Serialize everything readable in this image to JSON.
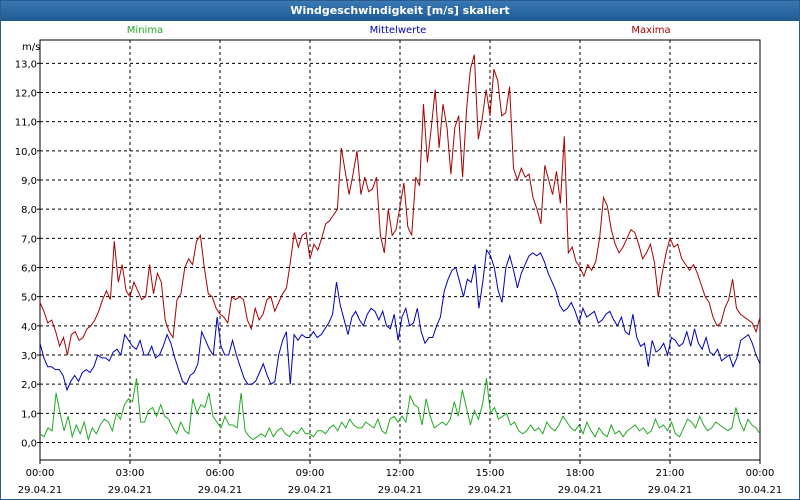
{
  "title": "Windgeschwindigkeit [m/s] skaliert",
  "chart_data": {
    "type": "line",
    "title": "Windgeschwindigkeit [m/s] skaliert",
    "ylabel": "m/s",
    "ylim": [
      -0.6,
      13.8
    ],
    "xlim": [
      0,
      24
    ],
    "y_ticks": [
      "0,0",
      "1,0",
      "2,0",
      "3,0",
      "4,0",
      "5,0",
      "6,0",
      "7,0",
      "8,0",
      "9,0",
      "10,0",
      "11,0",
      "12,0",
      "13,0"
    ],
    "x_ticks": [
      {
        "time": "00:00",
        "date": "29.04.21"
      },
      {
        "time": "03:00",
        "date": "29.04.21"
      },
      {
        "time": "06:00",
        "date": "29.04.21"
      },
      {
        "time": "09:00",
        "date": "29.04.21"
      },
      {
        "time": "12:00",
        "date": "29.04.21"
      },
      {
        "time": "15:00",
        "date": "29.04.21"
      },
      {
        "time": "18:00",
        "date": "29.04.21"
      },
      {
        "time": "21:00",
        "date": "29.04.21"
      },
      {
        "time": "00:00",
        "date": "30.04.21"
      }
    ],
    "grid": true,
    "legend_position": "top",
    "series": [
      {
        "name": "Minima",
        "color": "#22aa22",
        "values": [
          0.3,
          0.2,
          0.5,
          0.4,
          1.7,
          1.0,
          0.4,
          0.9,
          0.2,
          0.6,
          0.3,
          0.7,
          0.1,
          0.5,
          0.3,
          0.6,
          0.8,
          0.7,
          0.4,
          1.0,
          0.8,
          1.3,
          1.5,
          1.4,
          2.2,
          0.7,
          0.7,
          1.1,
          1.2,
          0.9,
          1.3,
          0.9,
          0.8,
          0.5,
          0.3,
          0.7,
          0.4,
          0.3,
          1.5,
          1.0,
          1.3,
          1.2,
          1.7,
          0.9,
          0.7,
          0.5,
          0.9,
          0.6,
          0.6,
          0.5,
          1.7,
          0.4,
          0.2,
          0.1,
          0.2,
          0.3,
          0.2,
          0.5,
          0.2,
          0.4,
          0.5,
          0.3,
          0.2,
          0.4,
          0.3,
          0.5,
          0.3,
          0.3,
          0.2,
          0.4,
          0.4,
          0.3,
          0.5,
          0.6,
          0.4,
          0.7,
          0.5,
          0.8,
          0.6,
          0.5,
          0.5,
          0.7,
          0.6,
          0.5,
          0.8,
          0.4,
          0.3,
          0.8,
          0.9,
          0.7,
          0.9,
          0.7,
          1.6,
          1.3,
          1.2,
          0.6,
          1.5,
          0.9,
          0.5,
          0.6,
          0.7,
          0.6,
          0.8,
          1.4,
          0.9,
          1.8,
          1.2,
          0.6,
          1.1,
          0.8,
          1.3,
          2.2,
          1.0,
          1.2,
          0.8,
          0.9,
          1.0,
          0.6,
          0.7,
          0.4,
          0.3,
          0.4,
          0.6,
          0.4,
          0.5,
          0.3,
          0.7,
          0.5,
          0.4,
          0.6,
          0.9,
          0.7,
          0.5,
          0.4,
          0.6,
          0.3,
          0.7,
          0.4,
          0.2,
          0.5,
          0.3,
          0.2,
          0.6,
          0.3,
          0.4,
          0.2,
          0.4,
          0.5,
          0.6,
          0.4,
          0.5,
          0.3,
          0.4,
          0.8,
          0.5,
          0.6,
          0.4,
          0.7,
          0.3,
          0.2,
          0.5,
          0.8,
          0.7,
          0.5,
          0.9,
          0.6,
          0.4,
          0.5,
          0.7,
          0.6,
          0.5,
          0.4,
          0.5,
          1.2,
          0.7,
          0.4,
          0.8,
          0.6,
          0.5,
          0.3
        ]
      },
      {
        "name": "Mittelwerte",
        "color": "#0000bb",
        "values": [
          3.4,
          2.9,
          2.6,
          2.6,
          2.5,
          2.5,
          2.3,
          1.8,
          2.1,
          2.3,
          2.1,
          2.4,
          2.5,
          2.4,
          2.6,
          3.0,
          2.9,
          2.9,
          2.8,
          3.1,
          3.2,
          3.0,
          3.7,
          3.5,
          3.3,
          3.2,
          3.5,
          3.0,
          3.0,
          3.3,
          2.9,
          3.0,
          3.3,
          3.7,
          3.4,
          2.9,
          2.5,
          2.1,
          2.0,
          2.3,
          2.4,
          2.7,
          3.8,
          3.5,
          3.2,
          3.0,
          4.3,
          3.3,
          3.0,
          3.0,
          3.5,
          3.0,
          2.6,
          2.2,
          2.0,
          2.0,
          2.1,
          2.4,
          2.7,
          2.3,
          2.0,
          2.1,
          3.0,
          3.5,
          3.8,
          2.0,
          3.7,
          3.5,
          3.7,
          3.6,
          3.6,
          3.8,
          3.6,
          3.7,
          3.9,
          4.1,
          4.4,
          5.5,
          4.7,
          4.2,
          3.7,
          4.3,
          4.5,
          4.2,
          4.0,
          4.4,
          4.6,
          4.5,
          4.2,
          4.5,
          4.0,
          3.9,
          4.4,
          3.5,
          4.3,
          4.6,
          4.0,
          4.1,
          4.6,
          3.8,
          3.4,
          3.6,
          3.6,
          4.0,
          4.3,
          5.2,
          5.6,
          5.9,
          6.0,
          5.5,
          5.0,
          5.6,
          5.5,
          6.1,
          4.6,
          5.5,
          6.6,
          6.4,
          6.0,
          5.2,
          4.8,
          6.0,
          6.4,
          5.9,
          5.3,
          5.8,
          6.1,
          6.4,
          6.5,
          6.4,
          6.5,
          6.2,
          5.8,
          5.5,
          5.2,
          4.7,
          4.5,
          4.6,
          4.8,
          4.5,
          4.1,
          4.6,
          4.3,
          4.4,
          4.5,
          4.1,
          4.2,
          4.4,
          4.5,
          4.2,
          4.0,
          4.3,
          3.8,
          3.7,
          4.4,
          3.6,
          3.3,
          3.4,
          2.6,
          3.5,
          3.1,
          3.2,
          3.4,
          3.0,
          3.6,
          3.5,
          3.3,
          3.4,
          3.8,
          3.3,
          3.9,
          3.4,
          3.2,
          3.6,
          3.1,
          3.0,
          3.2,
          2.8,
          2.9,
          3.0,
          2.6,
          2.9,
          3.5,
          3.6,
          3.7,
          3.4,
          3.0,
          2.7
        ]
      },
      {
        "name": "Maxima",
        "color": "#aa0000",
        "values": [
          4.8,
          4.5,
          4.1,
          4.2,
          3.8,
          3.3,
          3.6,
          3.0,
          3.7,
          3.8,
          3.5,
          3.6,
          3.9,
          4.0,
          4.2,
          4.5,
          4.9,
          5.2,
          4.9,
          6.9,
          5.5,
          6.1,
          5.2,
          5.0,
          5.5,
          5.2,
          4.9,
          5.0,
          6.1,
          5.1,
          5.8,
          5.5,
          4.2,
          3.8,
          3.6,
          4.9,
          5.1,
          6.0,
          6.3,
          6.1,
          6.9,
          7.1,
          6.0,
          5.1,
          5.0,
          4.6,
          4.4,
          4.3,
          4.1,
          5.0,
          4.9,
          5.0,
          4.9,
          4.2,
          3.9,
          4.6,
          4.2,
          4.4,
          4.9,
          5.0,
          4.5,
          4.8,
          5.1,
          5.3,
          6.2,
          7.2,
          6.7,
          7.1,
          7.2,
          6.3,
          6.8,
          6.6,
          7.0,
          7.5,
          7.6,
          7.8,
          8.0,
          10.1,
          9.3,
          8.5,
          9.2,
          10.0,
          8.5,
          9.1,
          8.6,
          8.7,
          9.1,
          7.1,
          6.5,
          8.0,
          7.1,
          7.3,
          8.1,
          8.9,
          7.4,
          7.1,
          9.1,
          8.8,
          11.6,
          9.6,
          10.8,
          12.1,
          10.1,
          11.6,
          10.8,
          9.2,
          10.8,
          11.2,
          9.1,
          11.4,
          12.8,
          13.3,
          10.4,
          11.1,
          12.1,
          11.2,
          12.8,
          12.4,
          11.2,
          11.3,
          12.2,
          9.4,
          9.0,
          9.4,
          9.1,
          9.2,
          8.4,
          8.0,
          7.5,
          9.5,
          9.0,
          8.5,
          9.3,
          8.2,
          10.5,
          6.5,
          6.7,
          6.2,
          6.0,
          5.7,
          6.1,
          5.9,
          6.2,
          7.0,
          8.4,
          8.1,
          7.3,
          6.8,
          6.5,
          6.7,
          7.0,
          7.3,
          7.2,
          6.8,
          6.3,
          6.5,
          6.8,
          6.2,
          5.0,
          5.8,
          6.5,
          7.0,
          6.7,
          6.8,
          6.3,
          6.1,
          5.9,
          6.1,
          5.8,
          5.4,
          5.0,
          4.8,
          4.3,
          4.0,
          4.1,
          4.6,
          4.9,
          5.6,
          4.6,
          4.4,
          4.3,
          4.2,
          4.1,
          3.8,
          4.3
        ]
      }
    ]
  }
}
